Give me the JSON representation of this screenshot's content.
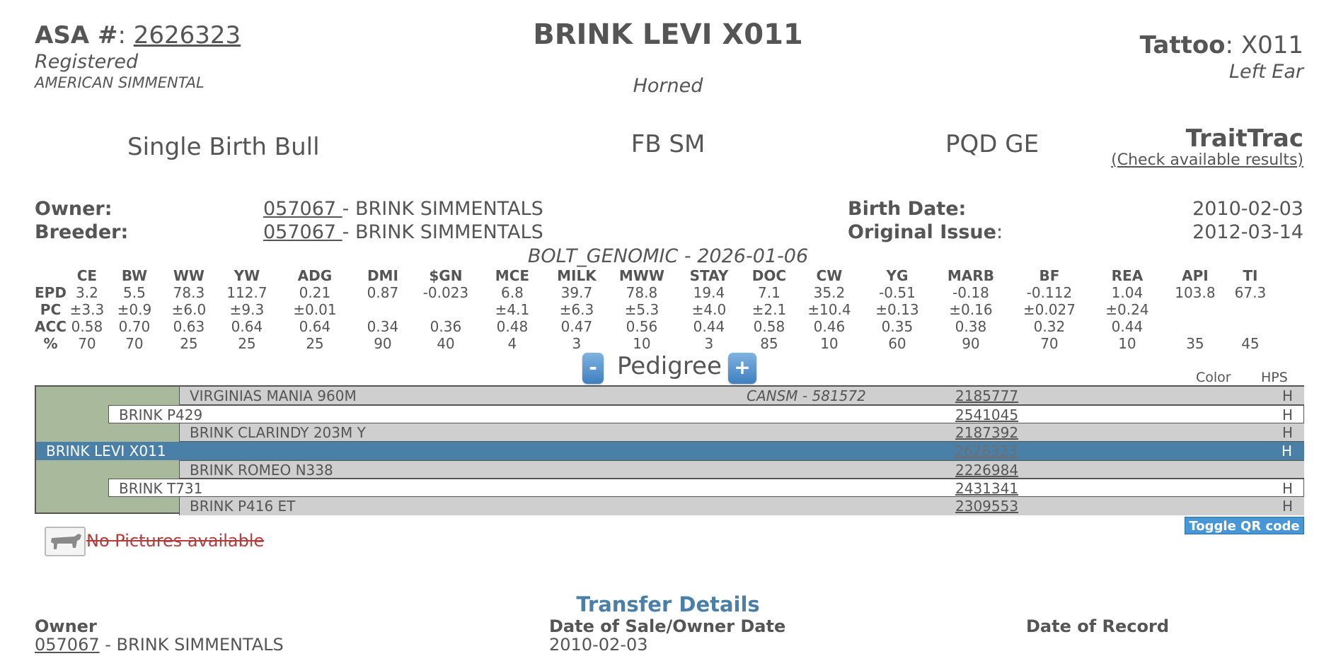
{
  "header": {
    "asa_label": "ASA #",
    "asa_number": "2626323",
    "status": "Registered",
    "association": "AMERICAN SIMMENTAL",
    "animal_name": "BRINK LEVI X011",
    "horn_status": "Horned",
    "tattoo_label": "Tattoo",
    "tattoo_value": "X011",
    "tattoo_location": "Left Ear"
  },
  "summary": {
    "birth_type": "Single Birth Bull",
    "breed_code": "FB SM",
    "designations": "PQD GE",
    "traittrac_title": "TraitTrac",
    "traittrac_link": "(Check available results)"
  },
  "details": {
    "owner_label": "Owner:",
    "owner_code": "057067 ",
    "owner_name": "BRINK SIMMENTALS",
    "breeder_label": "Breeder:",
    "breeder_code": "057067 ",
    "breeder_name": "BRINK SIMMENTALS",
    "birth_date_label": "Birth Date:",
    "birth_date": "2010-02-03",
    "original_issue_label": "Original Issue",
    "original_issue": "2012-03-14"
  },
  "epd": {
    "source": "BOLT_GENOMIC - 2026-01-06",
    "columns": [
      "CE",
      "BW",
      "WW",
      "YW",
      "ADG",
      "DMI",
      "$GN",
      "MCE",
      "MILK",
      "MWW",
      "STAY",
      "DOC",
      "CW",
      "YG",
      "MARB",
      "BF",
      "REA",
      "API",
      "TI"
    ],
    "rows": [
      {
        "label": "EPD",
        "values": [
          "3.2",
          "5.5",
          "78.3",
          "112.7",
          "0.21",
          "0.87",
          "-0.023",
          "6.8",
          "39.7",
          "78.8",
          "19.4",
          "7.1",
          "35.2",
          "-0.51",
          "-0.18",
          "-0.112",
          "1.04",
          "103.8",
          "67.3"
        ]
      },
      {
        "label": "PC",
        "values": [
          "±3.3",
          "±0.9",
          "±6.0",
          "±9.3",
          "±0.01",
          "",
          "",
          "±4.1",
          "±6.3",
          "±5.3",
          "±4.0",
          "±2.1",
          "±10.4",
          "±0.13",
          "±0.16",
          "±0.027",
          "±0.24",
          "",
          ""
        ]
      },
      {
        "label": "ACC",
        "values": [
          "0.58",
          "0.70",
          "0.63",
          "0.64",
          "0.64",
          "0.34",
          "0.36",
          "0.48",
          "0.47",
          "0.56",
          "0.44",
          "0.58",
          "0.46",
          "0.35",
          "0.38",
          "0.32",
          "0.44",
          "",
          ""
        ]
      },
      {
        "label": "%",
        "values": [
          "70",
          "70",
          "25",
          "25",
          "25",
          "90",
          "40",
          "4",
          "3",
          "10",
          "3",
          "85",
          "10",
          "60",
          "90",
          "70",
          "10",
          "35",
          "45"
        ]
      }
    ]
  },
  "pedigree": {
    "title": "Pedigree",
    "minus_label": "-",
    "plus_label": "+",
    "color_header": "Color",
    "hps_header": "HPS",
    "rows": [
      {
        "name": "VIRGINIAS MANIA 960M",
        "crossref": "CANSM - 581572",
        "reg": "2185777",
        "hps": "H"
      },
      {
        "name": "BRINK P429",
        "crossref": "",
        "reg": "2541045",
        "hps": "H"
      },
      {
        "name": "BRINK CLARINDY 203M Y",
        "crossref": "",
        "reg": "2187392",
        "hps": "H"
      },
      {
        "name": "BRINK LEVI X011",
        "crossref": "",
        "reg": "2626323",
        "hps": "H"
      },
      {
        "name": "BRINK ROMEO N338",
        "crossref": "",
        "reg": "2226984",
        "hps": ""
      },
      {
        "name": "BRINK T731",
        "crossref": "",
        "reg": "2431341",
        "hps": "H"
      },
      {
        "name": "BRINK P416 ET",
        "crossref": "",
        "reg": "2309553",
        "hps": "H"
      }
    ]
  },
  "media": {
    "qr_toggle": "Toggle QR code",
    "no_pictures": "No Pictures available",
    "icon": "cow-icon"
  },
  "transfer": {
    "title": "Transfer Details",
    "owner_header": "Owner",
    "date_header": "Date of Sale/Owner Date",
    "record_header": "Date of Record",
    "owner_code": "057067",
    "owner_name": "BRINK SIMMENTALS",
    "date": "2010-02-03"
  },
  "colors": {
    "text": "#555555",
    "selected_row": "#4a7fa7",
    "pedigree_bg": "#a9b99b",
    "accent_button": "#4796d6",
    "alert": "#b43b3b"
  }
}
